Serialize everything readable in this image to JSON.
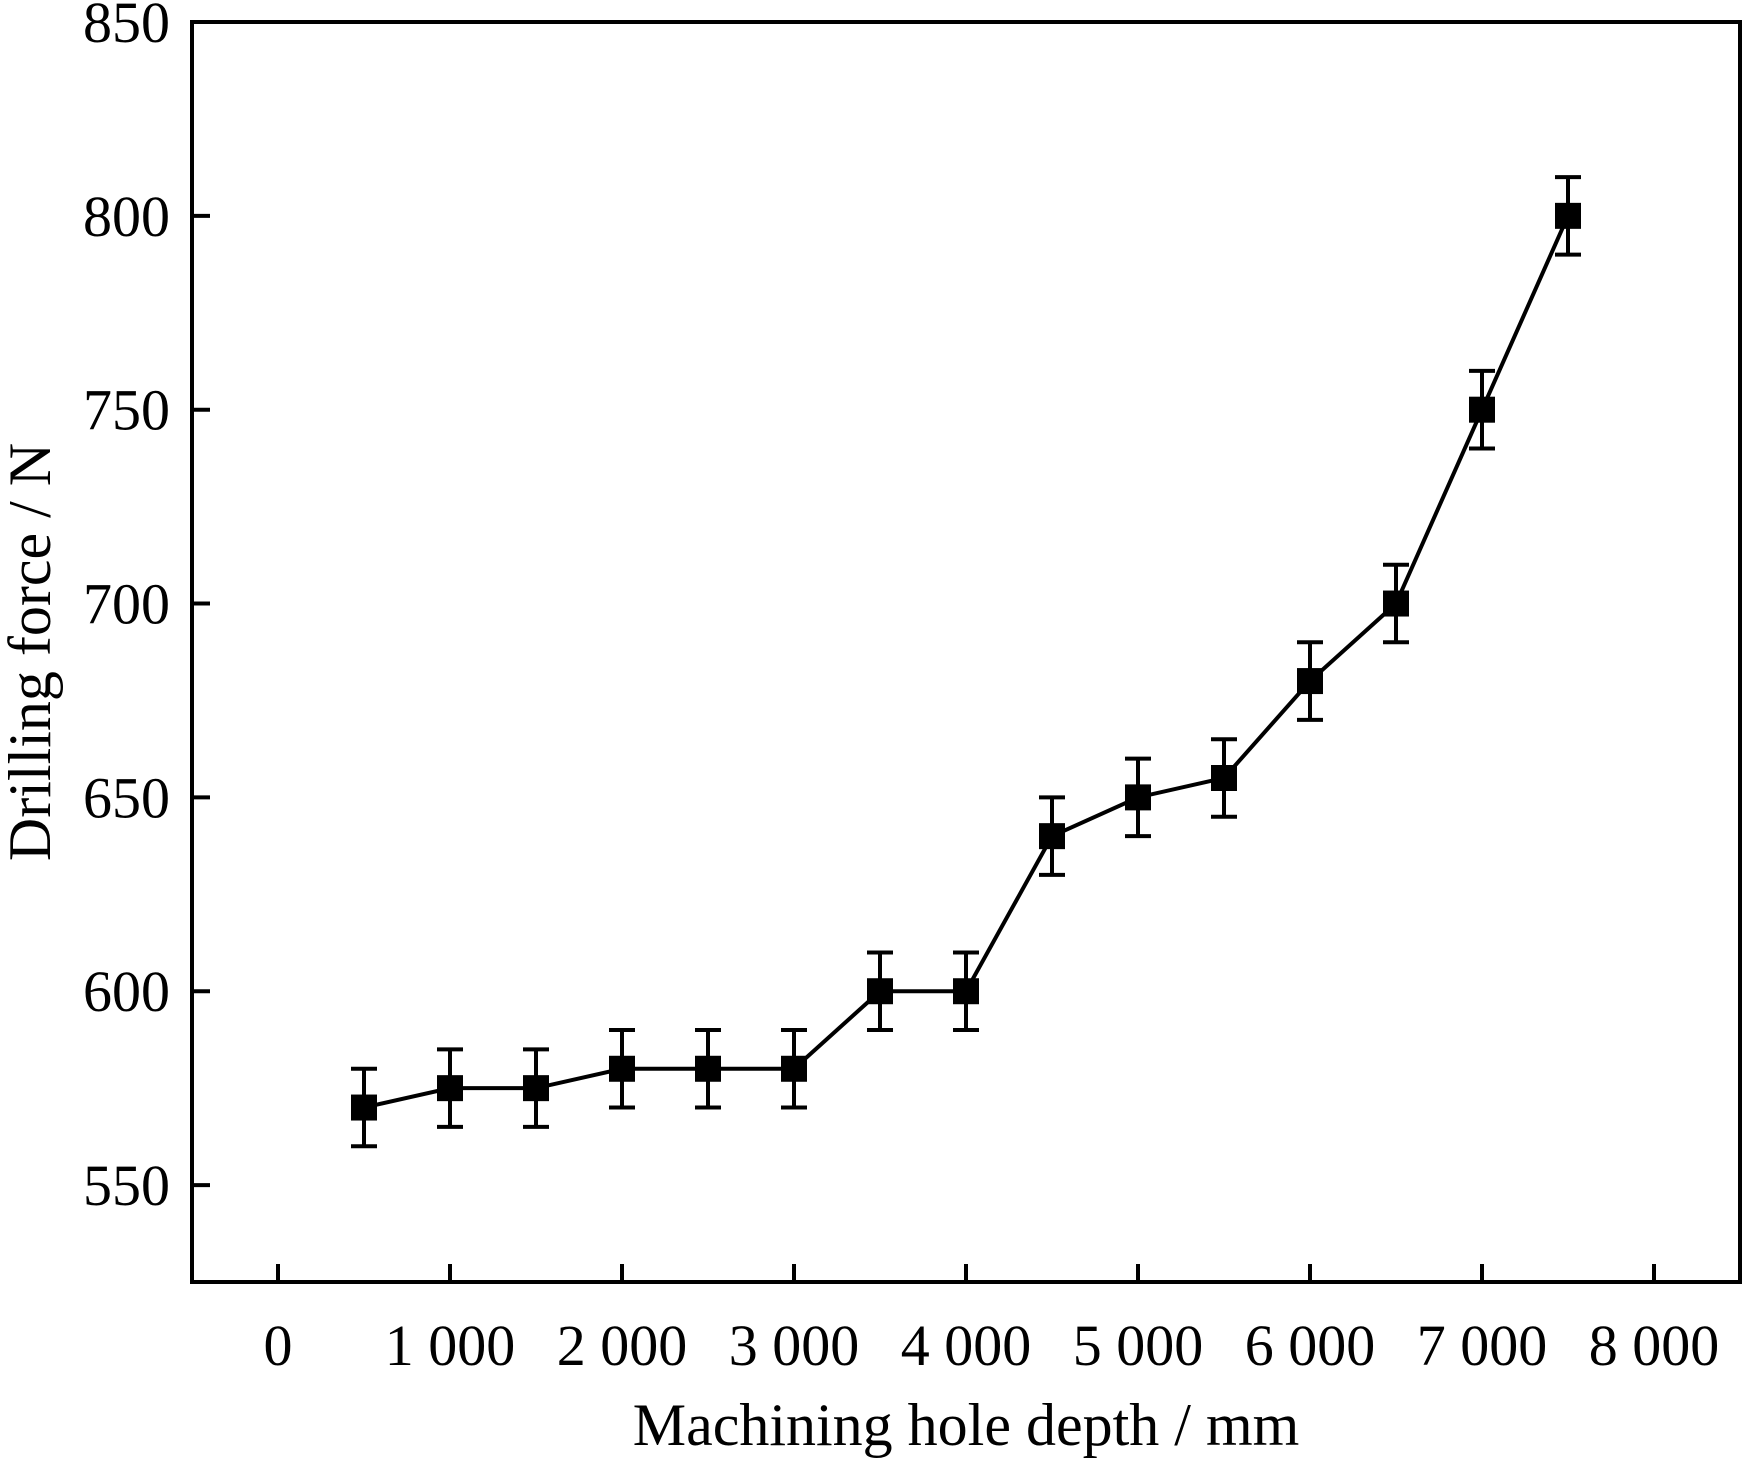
{
  "chart_data": {
    "type": "line",
    "title": "",
    "xlabel": "Machining hole depth / mm",
    "ylabel": "Drilling force / N",
    "xlim": [
      -500,
      8500
    ],
    "ylim": [
      525,
      850
    ],
    "x_ticks": [
      0,
      1000,
      2000,
      3000,
      4000,
      5000,
      6000,
      7000,
      8000
    ],
    "x_tick_labels": [
      "0",
      "1 000",
      "2 000",
      "3 000",
      "4 000",
      "5 000",
      "6 000",
      "7 000",
      "8 000"
    ],
    "y_ticks": [
      550,
      600,
      650,
      700,
      750,
      800,
      850
    ],
    "y_tick_labels": [
      "550",
      "600",
      "650",
      "700",
      "750",
      "800",
      "850"
    ],
    "grid": false,
    "legend": "none",
    "series": [
      {
        "marker": "square",
        "color": "#000000",
        "x": [
          500,
          1000,
          1500,
          2000,
          2500,
          3000,
          3500,
          4000,
          4500,
          5000,
          5500,
          6000,
          6500,
          7000,
          7500
        ],
        "y": [
          570,
          575,
          575,
          580,
          580,
          580,
          600,
          600,
          640,
          650,
          655,
          680,
          700,
          750,
          800
        ],
        "error": [
          10,
          10,
          10,
          10,
          10,
          10,
          10,
          10,
          10,
          10,
          10,
          10,
          10,
          10,
          10
        ]
      }
    ]
  }
}
